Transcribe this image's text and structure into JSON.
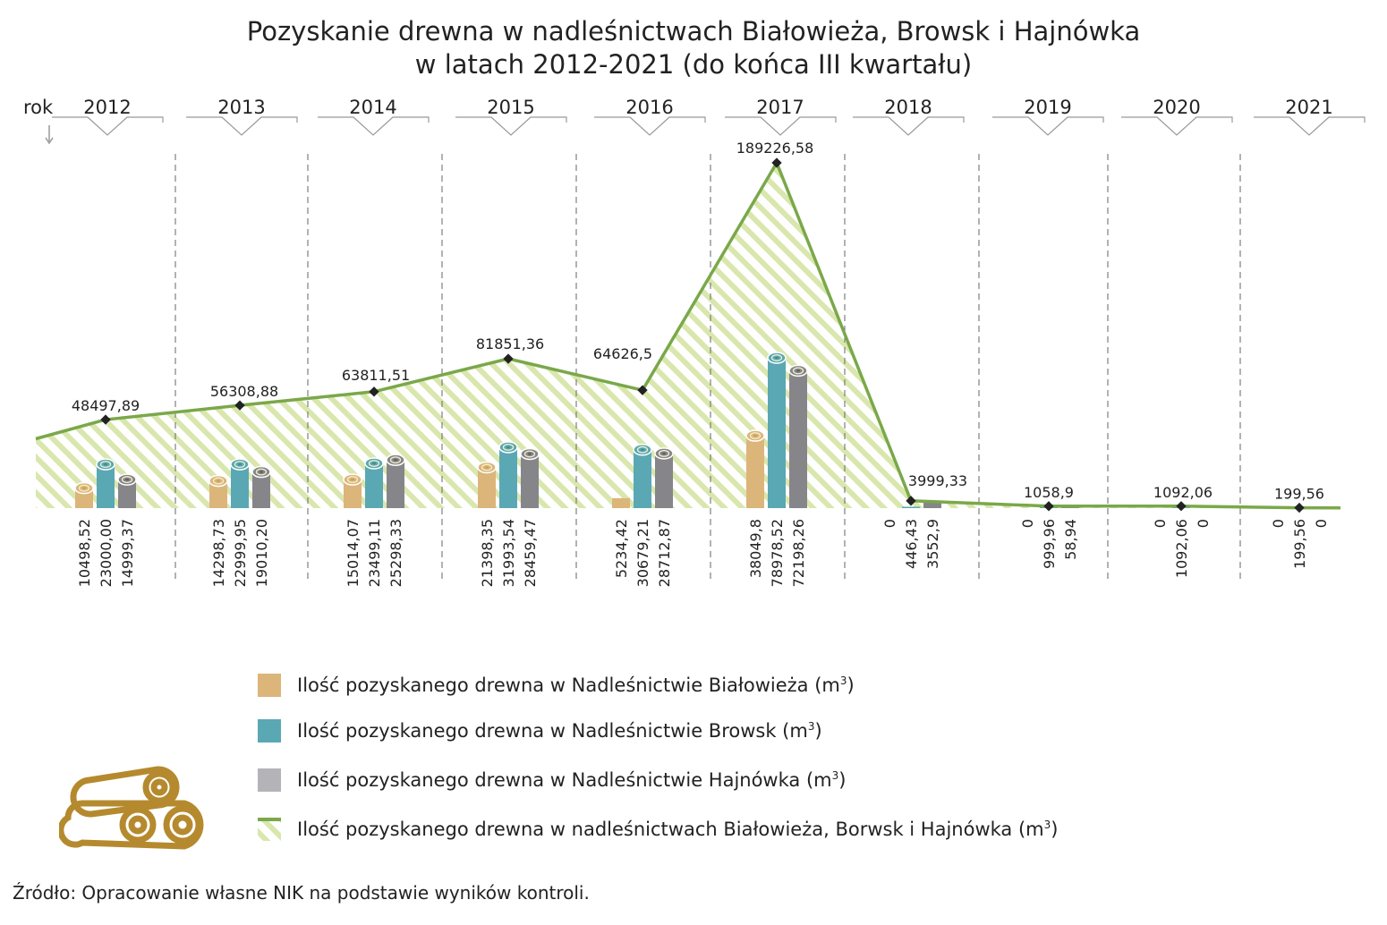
{
  "chart_data": {
    "type": "bar",
    "title_line1": "Pozyskanie drewna w nadleśnictwach Białowieża, Browsk i Hajnówka",
    "title_line2": "w latach 2012-2021 (do końca III kwartału)",
    "axis_label": "rok",
    "categories": [
      "2012",
      "2013",
      "2014",
      "2015",
      "2016",
      "2017",
      "2018",
      "2019",
      "2020",
      "2021"
    ],
    "series": [
      {
        "name": "Ilość pozyskanego drewna w Nadleśnictwie Białowieża (m",
        "color": "#dcb57a",
        "values": [
          10498.52,
          14298.73,
          15014.07,
          21398.35,
          5234.42,
          38049.8,
          0,
          0,
          0,
          0
        ],
        "labels": [
          "10498,52",
          "14298,73",
          "15014,07",
          "21398,35",
          "5234,42",
          "38049,8",
          "0",
          "0",
          "0",
          "0"
        ]
      },
      {
        "name": "Ilość pozyskanego drewna w Nadleśnictwie Browsk (m",
        "color": "#5aa8b4",
        "values": [
          23000.0,
          22999.95,
          23499.11,
          31993.54,
          30679.21,
          78978.52,
          446.43,
          999.96,
          1092.06,
          199.56
        ],
        "labels": [
          "23000,00",
          "22999,95",
          "23499,11",
          "31993,54",
          "30679,21",
          "78978,52",
          "446,43",
          "999,96",
          "1092,06",
          "199,56"
        ]
      },
      {
        "name": "Ilość pozyskanego drewna w Nadleśnictwie Hajnówka (m",
        "color": "#86868a",
        "values": [
          14999.37,
          19010.2,
          25298.33,
          28459.47,
          28712.87,
          72198.26,
          3552.9,
          58.94,
          0,
          0
        ],
        "labels": [
          "14999,37",
          "19010,20",
          "25298,33",
          "28459,47",
          "28712,87",
          "72198,26",
          "3552,9",
          "58,94",
          "0",
          "0"
        ]
      }
    ],
    "total": {
      "name": "Ilość pozyskanego drewna w nadleśnictwach Białowieża, Borwsk i Hajnówka (m",
      "color": "#7aa84a",
      "values": [
        48497.89,
        56308.88,
        63811.51,
        81851.36,
        64626.5,
        189226.58,
        3999.33,
        1058.9,
        1092.06,
        199.56
      ],
      "labels": [
        "48497,89",
        "56308,88",
        "63811,51",
        "81851,36",
        "64626,5",
        "189226,58",
        "3999,33",
        "1058,9",
        "1092,06",
        "199,56"
      ]
    },
    "unit_superscript": "3",
    "ylim": [
      0,
      189226.58
    ],
    "legend_position": "bottom",
    "source": "Źródło: Opracowanie własne NIK na podstawie wyników kontroli."
  }
}
